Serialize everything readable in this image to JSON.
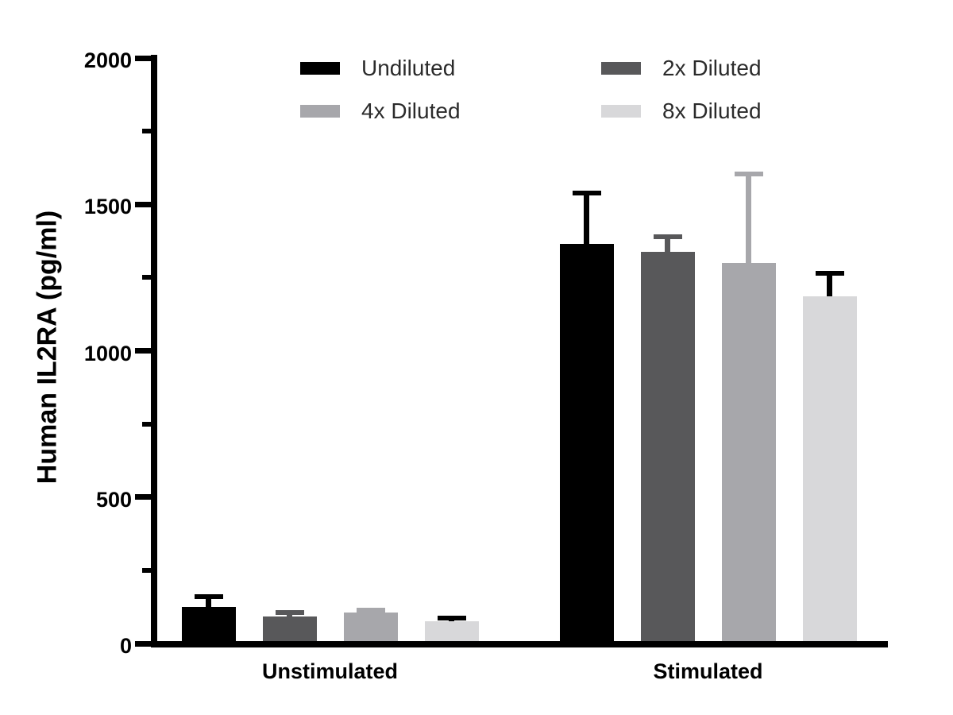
{
  "chart_data": {
    "type": "bar",
    "title": "",
    "xlabel": "",
    "ylabel": "Human IL2RA (pg/ml)",
    "categories": [
      "Unstimulated",
      "Stimulated"
    ],
    "series": [
      {
        "name": "Undiluted",
        "color": "#000000",
        "error_color": "#000000",
        "values": [
          125,
          1366
        ],
        "errors_upper": [
          35,
          174
        ]
      },
      {
        "name": "2x Diluted",
        "color": "#58585a",
        "error_color": "#58585a",
        "values": [
          92,
          1338
        ],
        "errors_upper": [
          14,
          52
        ]
      },
      {
        "name": "4x Diluted",
        "color": "#a7a7ab",
        "error_color": "#a7a7ab",
        "values": [
          106,
          1301
        ],
        "errors_upper": [
          9,
          304
        ]
      },
      {
        "name": "8x Diluted",
        "color": "#d8d8da",
        "error_color": "#000000",
        "values": [
          76,
          1187
        ],
        "errors_upper": [
          10,
          78
        ]
      }
    ],
    "ylim": [
      0,
      2000
    ],
    "yticks_major": [
      0,
      500,
      1000,
      1500,
      2000
    ],
    "yticks_minor": [
      250,
      750,
      1250,
      1750
    ],
    "ytick_labels": [
      "0",
      "500",
      "1000",
      "1500",
      "2000"
    ],
    "error_bars": "upper only",
    "grid": false,
    "legend_position": "top",
    "legend_columns": 2,
    "legend_order": [
      "Undiluted",
      "2x Diluted",
      "4x Diluted",
      "8x Diluted"
    ],
    "axis_color": "#000000",
    "background_color": "#ffffff"
  }
}
